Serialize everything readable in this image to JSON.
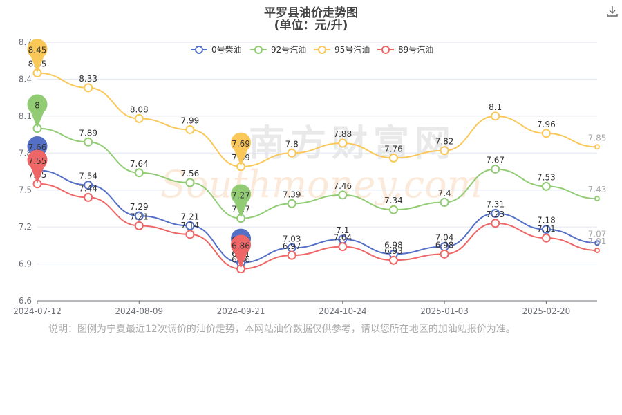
{
  "header": {
    "title": "平罗县油价走势图",
    "subtitle": "(单位：元/升)"
  },
  "note": "说明：图例为宁夏最近12次调价的油价走势，本网站油价数据仅供参考，请以您所在地区的加油站报价为准。",
  "watermark": {
    "cn": "南方财富网",
    "en": "Southmoney.com"
  },
  "toolbox": {
    "download_icon": "download-icon"
  },
  "chart_data": {
    "type": "line",
    "title": "平罗县油价走势图",
    "subtitle": "(单位：元/升)",
    "ylim": [
      6.6,
      8.7
    ],
    "yticks": [
      6.6,
      6.9,
      7.2,
      7.5,
      7.8,
      8.1,
      8.4,
      8.7
    ],
    "grid": true,
    "legend_position": "top-center",
    "x": [
      "2024-07-12",
      "",
      "2024-08-09",
      "",
      "2024-09-21",
      "",
      "2024-10-24",
      "",
      "2025-01-03",
      "",
      "2025-02-20",
      ""
    ],
    "xtick_labels": [
      "2024-07-12",
      "2024-08-09",
      "2024-09-21",
      "2024-10-24",
      "2025-01-03",
      "2025-02-20"
    ],
    "series": [
      {
        "name": "0号柴油",
        "color": "#5470c6",
        "values": [
          7.66,
          7.54,
          7.29,
          7.21,
          6.91,
          7.03,
          7.1,
          6.98,
          7.04,
          7.31,
          7.18,
          7.07
        ],
        "pins": [
          {
            "index": 0,
            "label": "7.66"
          },
          {
            "index": 4,
            "label": "6.91"
          }
        ]
      },
      {
        "name": "92号汽油",
        "color": "#91cc75",
        "values": [
          8.0,
          7.89,
          7.64,
          7.56,
          7.27,
          7.39,
          7.46,
          7.34,
          7.4,
          7.67,
          7.53,
          7.43
        ],
        "pins": [
          {
            "index": 0,
            "label": "8"
          },
          {
            "index": 4,
            "label": "7.27"
          }
        ]
      },
      {
        "name": "95号汽油",
        "color": "#fac858",
        "values": [
          8.45,
          8.33,
          8.08,
          7.99,
          7.69,
          7.8,
          7.88,
          7.76,
          7.82,
          8.1,
          7.96,
          7.85
        ],
        "pins": [
          {
            "index": 0,
            "label": "8.45"
          },
          {
            "index": 4,
            "label": "7.69"
          }
        ]
      },
      {
        "name": "89号汽油",
        "color": "#ee6666",
        "values": [
          7.55,
          7.44,
          7.21,
          7.14,
          6.86,
          6.97,
          7.04,
          6.93,
          6.98,
          7.23,
          7.11,
          7.01
        ],
        "pins": [
          {
            "index": 0,
            "label": "7.55"
          },
          {
            "index": 4,
            "label": "6.86"
          }
        ]
      }
    ]
  }
}
